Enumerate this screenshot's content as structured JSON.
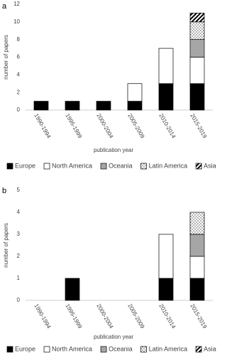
{
  "chart_data": [
    {
      "type": "bar",
      "stacked": true,
      "panel": "a",
      "ylabel": "number of papers",
      "xlabel": "publication year",
      "categories": [
        "1990-1994",
        "1995-1999",
        "2000-2004",
        "2005-2009",
        "2010-2014",
        "2015-2019"
      ],
      "ylim": [
        0,
        12
      ],
      "yticks": [
        0,
        2,
        4,
        6,
        8,
        10,
        12
      ],
      "series": [
        {
          "name": "Europe",
          "color": "#000000",
          "values": [
            1,
            1,
            1,
            1,
            3,
            3
          ]
        },
        {
          "name": "North America",
          "color": "#ffffff",
          "values": [
            0,
            0,
            0,
            2,
            4,
            3
          ]
        },
        {
          "name": "Oceania",
          "color": "#a6a6a6",
          "values": [
            0,
            0,
            0,
            0,
            0,
            2
          ]
        },
        {
          "name": "Latin America",
          "color": "#ffffff",
          "pattern": "dots",
          "values": [
            0,
            0,
            0,
            0,
            0,
            2
          ]
        },
        {
          "name": "Asia",
          "color": "#ffffff",
          "pattern": "hatch",
          "values": [
            0,
            0,
            0,
            0,
            0,
            1
          ]
        }
      ]
    },
    {
      "type": "bar",
      "stacked": true,
      "panel": "b",
      "ylabel": "number of papers",
      "xlabel": "publication year",
      "categories": [
        "1990-1994",
        "1995-1999",
        "2000-2004",
        "2005-2009",
        "2010-2014",
        "2015-2019"
      ],
      "ylim": [
        0,
        5
      ],
      "yticks": [
        0,
        1,
        2,
        3,
        4,
        5
      ],
      "series": [
        {
          "name": "Europe",
          "color": "#000000",
          "values": [
            0,
            1,
            0,
            0,
            1,
            1
          ]
        },
        {
          "name": "North America",
          "color": "#ffffff",
          "values": [
            0,
            0,
            0,
            0,
            2,
            1
          ]
        },
        {
          "name": "Oceania",
          "color": "#a6a6a6",
          "values": [
            0,
            0,
            0,
            0,
            0,
            1
          ]
        },
        {
          "name": "Latin America",
          "color": "#ffffff",
          "pattern": "dots",
          "values": [
            0,
            0,
            0,
            0,
            0,
            1
          ]
        },
        {
          "name": "Asia",
          "color": "#ffffff",
          "pattern": "hatch",
          "values": [
            0,
            0,
            0,
            0,
            0,
            0
          ]
        }
      ]
    }
  ]
}
